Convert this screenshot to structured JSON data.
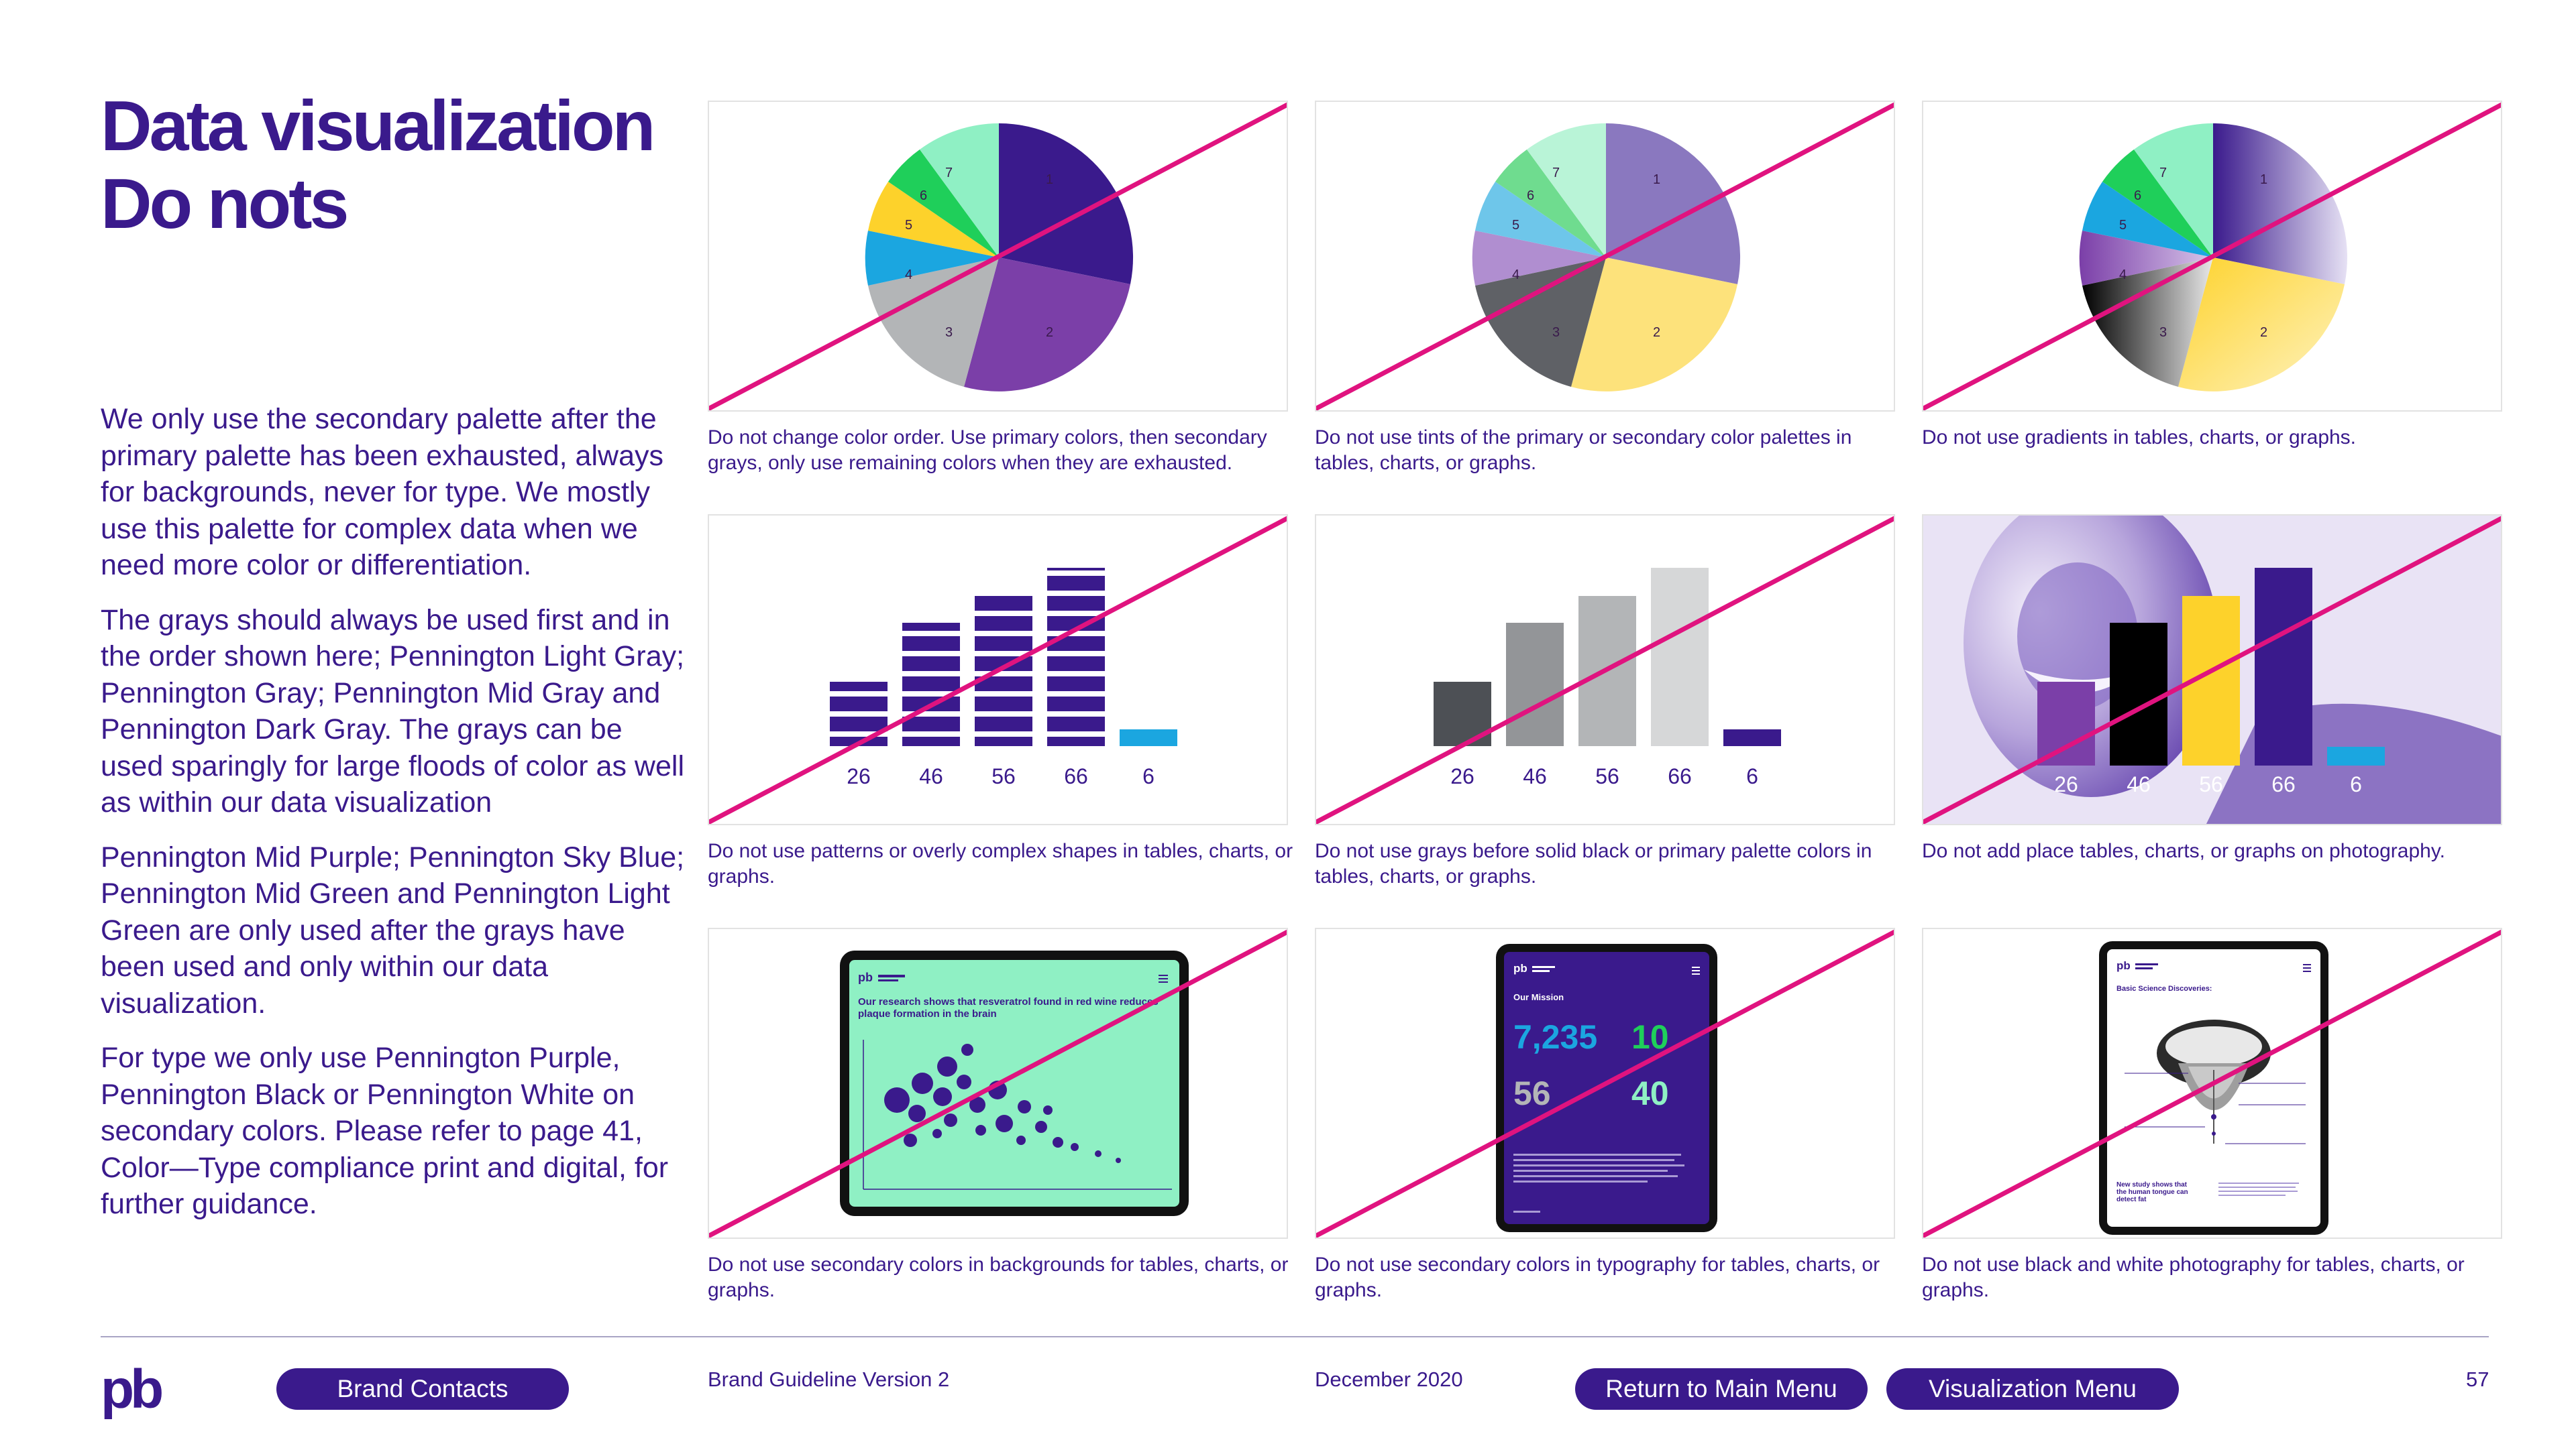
{
  "title": [
    "Data visualization",
    "Do nots"
  ],
  "body_paragraphs": [
    "We only use the secondary palette after the primary palette has been exhausted, always for backgrounds, never for type. We mostly use this palette for complex data when we need more color or differentiation.",
    "The grays should always be used first and in the order shown here; Pennington Light Gray; Pennington Gray; Pennington Mid Gray and Pennington Dark Gray. The grays can be used sparingly for large floods of color as well as within our data visualization",
    "Pennington Mid Purple; Pennington Sky Blue; Pennington Mid Green and Pennington Light Green are only used after the grays have been used and only within our data visualization.",
    "For type we only use Pennington Purple, Pennington Black or Pennington White on secondary colors. Please refer to page 41, Color—Type compliance print and digital, for further guidance."
  ],
  "captions": [
    "Do not change color order. Use primary colors, then secondary grays, only use remaining colors when they are exhausted.",
    "Do not use tints of the primary or secondary color palettes in tables, charts, or graphs.",
    "Do not use gradients in tables, charts, or graphs.",
    "Do not use patterns or overly complex shapes in tables, charts, or graphs.",
    "Do not use grays before solid black or primary palette colors in tables, charts, or graphs.",
    "Do not add place tables, charts, or graphs on photography.",
    "Do not use secondary colors in backgrounds for tables, charts, or graphs.",
    "Do not use secondary colors in typography for tables, charts, or graphs.",
    "Do not use black and white photography for tables, charts, or graphs."
  ],
  "pie_labels": [
    "1",
    "2",
    "3",
    "4",
    "5",
    "6",
    "7"
  ],
  "bar_labels": [
    "26",
    "46",
    "56",
    "66",
    "6"
  ],
  "tablet1": {
    "heading": "Our research shows that resveratrol found in red wine reduces plaque formation in the brain"
  },
  "tablet2": {
    "heading": "Our Mission",
    "stat1": "7,235",
    "stat2": "10",
    "stat3": "56",
    "stat4": "40"
  },
  "tablet3": {
    "heading": "Basic Science Discoveries:",
    "footnote": "New study shows that the human tongue can detect fat"
  },
  "footer": {
    "logo": "pb",
    "brand_contacts": "Brand Contacts",
    "version": "Brand Guideline Version 2",
    "date": "December 2020",
    "main_menu": "Return to Main Menu",
    "viz_menu": "Visualization Menu",
    "page": "57"
  },
  "colors": {
    "primary_purple": "#3a1a8c",
    "strike_magenta": "#e0137f",
    "mid_purple": "#7b3fa8",
    "yellow": "#fdd22b",
    "sky_blue": "#1ba6e0",
    "mid_green": "#1fcf5a",
    "light_green": "#8ff0c4",
    "gray": "#b3b5b7",
    "dark_gray": "#4d5055"
  }
}
